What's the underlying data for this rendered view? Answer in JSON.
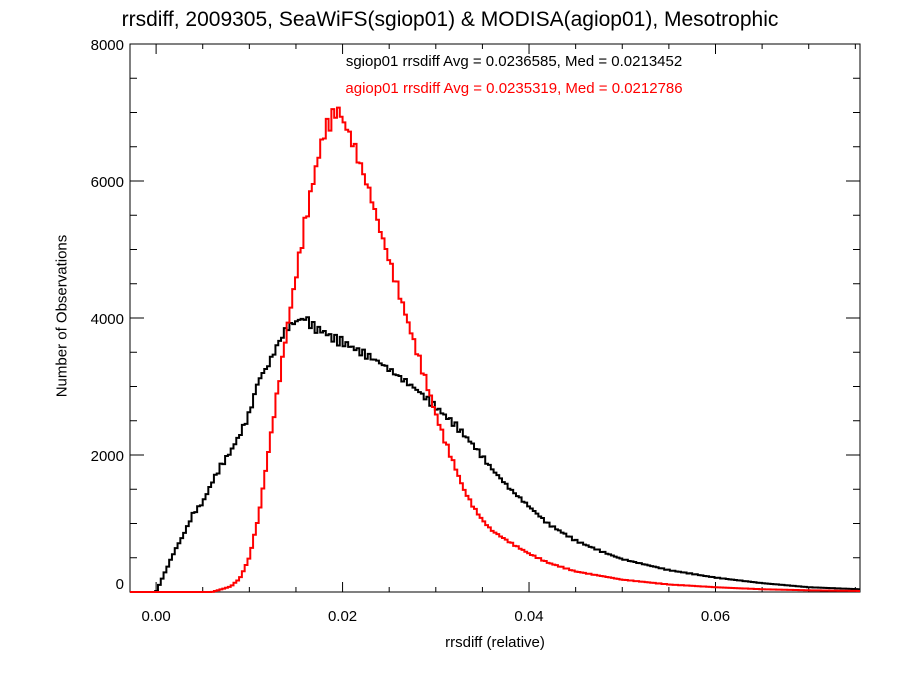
{
  "chart_data": {
    "type": "line",
    "title": "rrsdiff, 2009305, SeaWiFS(sgiop01) & MODISA(agiop01), Mesotrophic",
    "xlabel": "rrsdiff (relative)",
    "ylabel": "Number of Observations",
    "xlim": [
      -0.0028,
      0.0755
    ],
    "ylim": [
      0,
      8000
    ],
    "x_ticks": [
      0.0,
      0.02,
      0.04,
      0.06
    ],
    "x_tick_labels": [
      "0.00",
      "0.02",
      "0.04",
      "0.06"
    ],
    "y_ticks": [
      0,
      2000,
      4000,
      6000,
      8000
    ],
    "y_tick_labels": [
      "0",
      "2000",
      "4000",
      "6000",
      "8000"
    ],
    "grid": false,
    "annotations": [
      {
        "text": "sgiop01 rrsdiff Avg = 0.0236585, Med = 0.0213452",
        "color": "#000000"
      },
      {
        "text": "agiop01 rrsdiff Avg = 0.0235319, Med = 0.0212786",
        "color": "#ff0000"
      }
    ],
    "series": [
      {
        "color": "#000000",
        "points": [
          [
            -0.0028,
            0
          ],
          [
            0.0,
            0
          ],
          [
            0.001,
            300
          ],
          [
            0.002,
            600
          ],
          [
            0.003,
            850
          ],
          [
            0.004,
            1150
          ],
          [
            0.005,
            1300
          ],
          [
            0.006,
            1600
          ],
          [
            0.007,
            1850
          ],
          [
            0.008,
            2050
          ],
          [
            0.009,
            2300
          ],
          [
            0.01,
            2600
          ],
          [
            0.011,
            3100
          ],
          [
            0.012,
            3300
          ],
          [
            0.013,
            3600
          ],
          [
            0.014,
            3850
          ],
          [
            0.015,
            3950
          ],
          [
            0.016,
            4000
          ],
          [
            0.017,
            3850
          ],
          [
            0.018,
            3800
          ],
          [
            0.019,
            3700
          ],
          [
            0.02,
            3650
          ],
          [
            0.022,
            3500
          ],
          [
            0.024,
            3350
          ],
          [
            0.026,
            3150
          ],
          [
            0.028,
            2950
          ],
          [
            0.03,
            2700
          ],
          [
            0.032,
            2450
          ],
          [
            0.034,
            2150
          ],
          [
            0.036,
            1800
          ],
          [
            0.038,
            1500
          ],
          [
            0.04,
            1250
          ],
          [
            0.042,
            1000
          ],
          [
            0.045,
            750
          ],
          [
            0.048,
            580
          ],
          [
            0.05,
            480
          ],
          [
            0.055,
            320
          ],
          [
            0.06,
            210
          ],
          [
            0.065,
            130
          ],
          [
            0.07,
            70
          ],
          [
            0.0755,
            40
          ]
        ]
      },
      {
        "color": "#ff0000",
        "points": [
          [
            -0.0028,
            0
          ],
          [
            0.006,
            0
          ],
          [
            0.007,
            40
          ],
          [
            0.008,
            80
          ],
          [
            0.009,
            200
          ],
          [
            0.01,
            500
          ],
          [
            0.011,
            1100
          ],
          [
            0.012,
            2000
          ],
          [
            0.013,
            2900
          ],
          [
            0.014,
            3800
          ],
          [
            0.015,
            4600
          ],
          [
            0.016,
            5400
          ],
          [
            0.017,
            6100
          ],
          [
            0.018,
            6700
          ],
          [
            0.019,
            6950
          ],
          [
            0.0195,
            7050
          ],
          [
            0.02,
            6900
          ],
          [
            0.021,
            6600
          ],
          [
            0.022,
            6200
          ],
          [
            0.023,
            5800
          ],
          [
            0.024,
            5300
          ],
          [
            0.025,
            4850
          ],
          [
            0.026,
            4400
          ],
          [
            0.027,
            3950
          ],
          [
            0.028,
            3500
          ],
          [
            0.029,
            3050
          ],
          [
            0.03,
            2600
          ],
          [
            0.031,
            2200
          ],
          [
            0.032,
            1850
          ],
          [
            0.033,
            1500
          ],
          [
            0.034,
            1250
          ],
          [
            0.035,
            1050
          ],
          [
            0.036,
            900
          ],
          [
            0.038,
            720
          ],
          [
            0.04,
            560
          ],
          [
            0.042,
            430
          ],
          [
            0.045,
            300
          ],
          [
            0.05,
            180
          ],
          [
            0.055,
            110
          ],
          [
            0.06,
            70
          ],
          [
            0.065,
            40
          ],
          [
            0.07,
            25
          ],
          [
            0.0755,
            15
          ]
        ]
      }
    ]
  }
}
